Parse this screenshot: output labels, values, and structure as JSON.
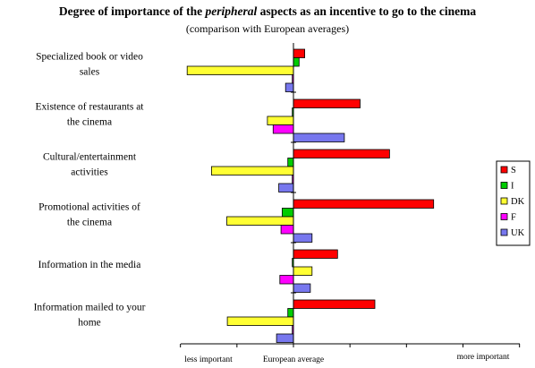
{
  "chart_data": {
    "type": "bar",
    "orientation": "horizontal",
    "title_parts": [
      {
        "text": "Degree of importance of the ",
        "italic": false
      },
      {
        "text": "peripheral",
        "italic": true
      },
      {
        "text": " aspects as an incentive to go to the  cinema",
        "italic": false
      }
    ],
    "subtitle": "(comparison with European averages)",
    "categories": [
      [
        "Specialized book or video",
        "sales"
      ],
      [
        "Existence of restaurants at",
        "the cinema"
      ],
      [
        "Cultural/entertainment",
        "activities"
      ],
      [
        "Promotional activities of",
        "the cinema"
      ],
      [
        "Information in the media"
      ],
      [
        "Information mailed to your",
        "home"
      ]
    ],
    "series": [
      {
        "name": "S",
        "color": "#ff0000",
        "values": [
          0.2,
          1.18,
          1.7,
          2.48,
          0.78,
          1.44
        ]
      },
      {
        "name": "I",
        "color": "#00cc00",
        "values": [
          0.1,
          -0.02,
          -0.1,
          -0.2,
          -0.02,
          -0.1
        ]
      },
      {
        "name": "DK",
        "color": "#ffff33",
        "values": [
          -1.88,
          -0.46,
          -1.45,
          -1.18,
          0.33,
          -1.17
        ]
      },
      {
        "name": "F",
        "color": "#ff00ff",
        "values": [
          -0.02,
          -0.36,
          -0.02,
          -0.22,
          -0.24,
          -0.02
        ]
      },
      {
        "name": "UK",
        "color": "#7777ee",
        "values": [
          -0.14,
          0.9,
          -0.26,
          0.33,
          0.3,
          -0.3
        ]
      }
    ],
    "xlim": [
      -2,
      4
    ],
    "x_tick_labels": {
      "left": "less important",
      "center": "European average",
      "right": "more important"
    },
    "legend_placement": "right",
    "grid": false
  }
}
